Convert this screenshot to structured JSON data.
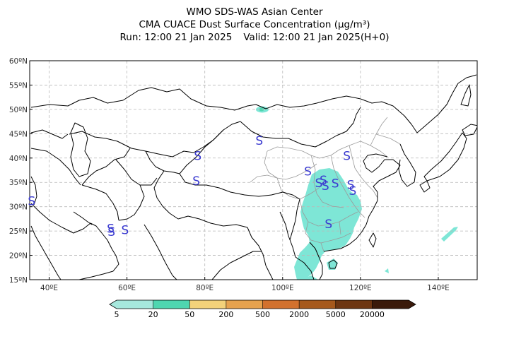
{
  "title": {
    "line1": "WMO SDS-WAS Asian Center",
    "line2": "CMA CUACE Dust Surface Concentration (μg/m³)",
    "run": "Run: 12:00 21 Jan 2025",
    "valid": "Valid: 12:00 21 Jan 2025(H+0)"
  },
  "map": {
    "lon_range": [
      35,
      150
    ],
    "lat_range": [
      15,
      60
    ],
    "lat_ticks": [
      "60ºN",
      "55ºN",
      "50ºN",
      "45ºN",
      "40ºN",
      "35ºN",
      "30ºN",
      "25ºN",
      "20ºN",
      "15ºN"
    ],
    "lat_values": [
      60,
      55,
      50,
      45,
      40,
      35,
      30,
      25,
      20,
      15
    ],
    "lon_ticks": [
      "40ºE",
      "60ºE",
      "80ºE",
      "100ºE",
      "120ºE",
      "140ºE"
    ],
    "lon_values": [
      40,
      60,
      80,
      100,
      120,
      140
    ],
    "gridlines": true,
    "dust_station_symbol": "S",
    "dust_stations": [
      {
        "lon": 35.5,
        "lat": 31.2
      },
      {
        "lon": 55.8,
        "lat": 25.5
      },
      {
        "lon": 56.0,
        "lat": 24.9
      },
      {
        "lon": 59.5,
        "lat": 25.2
      },
      {
        "lon": 78.2,
        "lat": 40.5
      },
      {
        "lon": 77.8,
        "lat": 35.3
      },
      {
        "lon": 94.0,
        "lat": 43.6
      },
      {
        "lon": 106.5,
        "lat": 37.3
      },
      {
        "lon": 109.3,
        "lat": 34.9
      },
      {
        "lon": 110.5,
        "lat": 35.5
      },
      {
        "lon": 111.0,
        "lat": 34.3
      },
      {
        "lon": 113.5,
        "lat": 34.8
      },
      {
        "lon": 116.5,
        "lat": 40.5
      },
      {
        "lon": 117.5,
        "lat": 34.5
      },
      {
        "lon": 118.0,
        "lat": 33.3
      },
      {
        "lon": 111.8,
        "lat": 26.5
      }
    ]
  },
  "colorbar": {
    "labels": [
      "5",
      "20",
      "50",
      "200",
      "500",
      "2000",
      "5000",
      "20000"
    ],
    "colors": [
      "#a6e8dd",
      "#4fd6b0",
      "#f3d27a",
      "#e6a24e",
      "#d2712e",
      "#a6591c",
      "#6d3612",
      "#3a1a0a"
    ]
  },
  "colors": {
    "dust_low": "#7ee6d6",
    "dust_mid": "#4fd6b0",
    "coast": "#000000",
    "province": "#9a9a9a",
    "grid": "#b8b8b8"
  }
}
